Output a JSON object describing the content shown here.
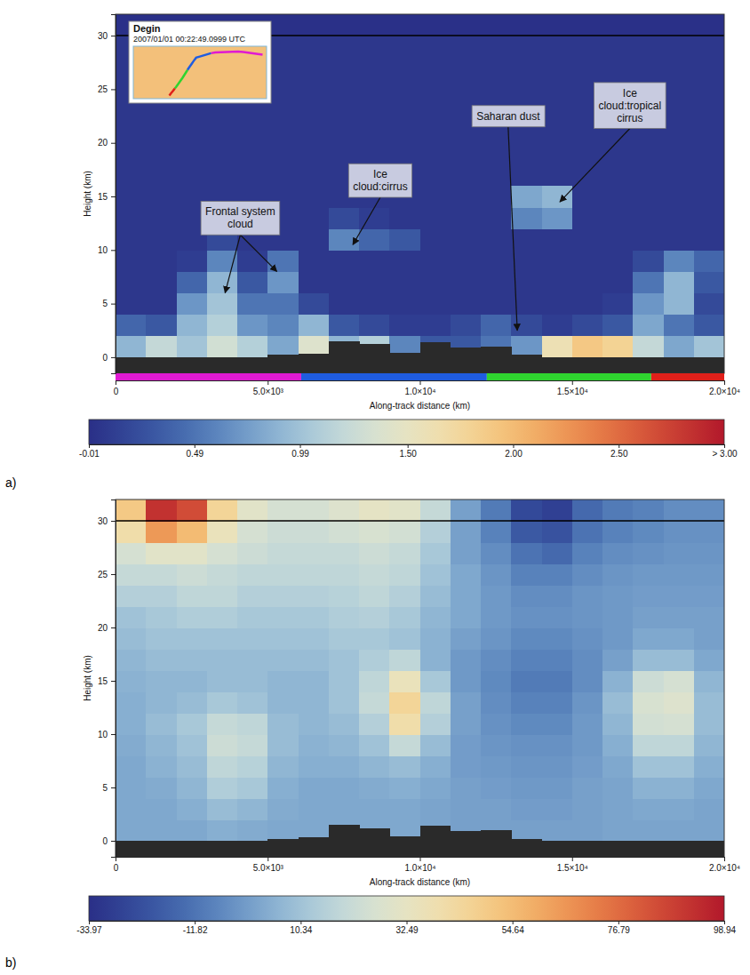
{
  "chart_data": [
    {
      "type": "heatmap",
      "panel_label": "a)",
      "x_label": "Along-track distance (km)",
      "y_label": "Height (km)",
      "xlim": [
        0,
        20000
      ],
      "ylim": [
        -1.5,
        32
      ],
      "xticks": [
        0,
        {
          "value": 5000,
          "label": "5.0×10³"
        },
        {
          "value": 10000,
          "label": "1.0×10⁴"
        },
        {
          "value": 15000,
          "label": "1.5×10⁴"
        },
        {
          "value": 20000,
          "label": "2.0×10⁴"
        }
      ],
      "yticks": [
        0,
        5,
        10,
        15,
        20,
        25,
        30
      ],
      "x_edges": [
        0,
        1000,
        2000,
        3000,
        4000,
        5000,
        6000,
        7000,
        8000,
        9000,
        10000,
        11000,
        12000,
        13000,
        14000,
        15000,
        16000,
        17000,
        18000,
        19000,
        20000
      ],
      "y_edges": [
        0,
        2,
        4,
        6,
        8,
        10,
        12,
        14,
        16,
        18,
        20,
        22,
        24,
        26,
        28,
        30,
        32
      ],
      "cells": [
        [
          0.9,
          1.2,
          1.0,
          1.3,
          1.1,
          0.8,
          1.4,
          0.9,
          1.1,
          0.6,
          0.3,
          0.3,
          0.5,
          0.7,
          1.6,
          1.9,
          1.8,
          1.2,
          0.8,
          1.0
        ],
        [
          0.4,
          0.3,
          0.9,
          1.1,
          0.7,
          0.6,
          0.9,
          0.3,
          0.2,
          0.1,
          0.1,
          0.2,
          0.4,
          0.2,
          0.1,
          0.2,
          0.3,
          0.8,
          0.5,
          0.3
        ],
        [
          0.05,
          0.05,
          0.7,
          1.0,
          0.5,
          0.5,
          0.2,
          0.05,
          0.05,
          0.05,
          0.05,
          0.05,
          0.05,
          0.05,
          0.05,
          0.05,
          0.1,
          0.7,
          0.9,
          0.2
        ],
        [
          0.05,
          0.05,
          0.4,
          0.9,
          0.3,
          0.7,
          0.05,
          0.05,
          0.05,
          0.05,
          0.05,
          0.05,
          0.05,
          0.05,
          0.05,
          0.05,
          0.05,
          0.5,
          0.9,
          0.3
        ],
        [
          0.05,
          0.05,
          0.1,
          0.6,
          0.1,
          0.5,
          0.05,
          0.05,
          0.05,
          0.05,
          0.05,
          0.05,
          0.05,
          0.05,
          0.05,
          0.05,
          0.05,
          0.2,
          0.6,
          0.4
        ],
        [
          0.05,
          0.05,
          0.05,
          0.2,
          0.05,
          0.05,
          0.05,
          0.6,
          0.4,
          0.3,
          0.05,
          0.05,
          0.05,
          0.05,
          0.05,
          0.05,
          0.05,
          0.05,
          0.05,
          0.05
        ],
        [
          0.05,
          0.05,
          0.05,
          0.05,
          0.05,
          0.05,
          0.05,
          0.2,
          0.1,
          0.05,
          0.05,
          0.05,
          0.05,
          0.6,
          0.7,
          0.05,
          0.05,
          0.05,
          0.05,
          0.05
        ],
        [
          0.05,
          0.05,
          0.05,
          0.05,
          0.05,
          0.05,
          0.05,
          0.05,
          0.05,
          0.05,
          0.05,
          0.05,
          0.05,
          0.8,
          0.9,
          0.05,
          0.05,
          0.05,
          0.05,
          0.05
        ],
        [
          0.05,
          0.05,
          0.05,
          0.05,
          0.05,
          0.05,
          0.05,
          0.05,
          0.05,
          0.05,
          0.05,
          0.05,
          0.05,
          0.05,
          0.05,
          0.05,
          0.05,
          0.05,
          0.05,
          0.05
        ],
        [
          0.05,
          0.05,
          0.05,
          0.05,
          0.05,
          0.05,
          0.05,
          0.05,
          0.05,
          0.05,
          0.05,
          0.05,
          0.05,
          0.05,
          0.05,
          0.05,
          0.05,
          0.05,
          0.05,
          0.05
        ],
        [
          0.05,
          0.05,
          0.05,
          0.05,
          0.05,
          0.05,
          0.05,
          0.05,
          0.05,
          0.05,
          0.05,
          0.05,
          0.05,
          0.05,
          0.05,
          0.05,
          0.05,
          0.05,
          0.05,
          0.05
        ],
        [
          0.05,
          0.05,
          0.05,
          0.05,
          0.05,
          0.05,
          0.05,
          0.05,
          0.05,
          0.05,
          0.05,
          0.05,
          0.05,
          0.05,
          0.05,
          0.05,
          0.05,
          0.05,
          0.05,
          0.05
        ],
        [
          0.05,
          0.05,
          0.05,
          0.05,
          0.05,
          0.05,
          0.05,
          0.05,
          0.05,
          0.05,
          0.05,
          0.05,
          0.05,
          0.05,
          0.05,
          0.05,
          0.05,
          0.05,
          0.05,
          0.05
        ],
        [
          0.05,
          0.05,
          0.05,
          0.05,
          0.05,
          0.05,
          0.05,
          0.05,
          0.05,
          0.05,
          0.05,
          0.05,
          0.05,
          0.05,
          0.05,
          0.05,
          0.05,
          0.05,
          0.05,
          0.05
        ],
        [
          0.05,
          0.05,
          0.05,
          0.05,
          0.05,
          0.05,
          0.05,
          0.05,
          0.05,
          0.05,
          0.05,
          0.05,
          0.05,
          0.05,
          0.05,
          0.05,
          0.05,
          0.05,
          0.05,
          0.05
        ],
        [
          0.0,
          0.0,
          0.0,
          0.0,
          0.0,
          0.0,
          0.0,
          0.0,
          0.0,
          0.0,
          0.0,
          0.0,
          0.0,
          0.0,
          0.0,
          0.0,
          0.0,
          0.0,
          0.0,
          0.0
        ]
      ],
      "surface": [
        0,
        0,
        0,
        0,
        0,
        0.2,
        0.3,
        1.5,
        1.2,
        0.4,
        1.4,
        0.9,
        1.0,
        0.2,
        0,
        0,
        0,
        0,
        0,
        0
      ],
      "hline": 30,
      "colorbar_range": [
        -0.01,
        3.0
      ],
      "colorbar_ticks": [
        -0.01,
        0.49,
        0.99,
        {
          "value": 1.5,
          "label": "1.50"
        },
        {
          "value": 2.0,
          "label": "2.00"
        },
        {
          "value": 2.5,
          "label": "2.50"
        },
        {
          "value": 3.0,
          "label": "> 3.00"
        }
      ],
      "track_segments": [
        {
          "start": 0,
          "end": 6100,
          "color": "#e01ad2"
        },
        {
          "start": 6100,
          "end": 12200,
          "color": "#1f5ce0"
        },
        {
          "start": 12200,
          "end": 17600,
          "color": "#2fd42f"
        },
        {
          "start": 17600,
          "end": 20000,
          "color": "#e0201a"
        }
      ],
      "inset": {
        "title": "Degin",
        "time": "2007/01/01 00:22:49.0999 UTC"
      },
      "annotations": [
        {
          "text": "Frontal system cloud",
          "points": [
            [
              3600,
              6
            ],
            [
              5300,
              8
            ]
          ]
        },
        {
          "text": "Ice cloud:cirrus",
          "points": [
            [
              7800,
              10.5
            ]
          ]
        },
        {
          "text": "Saharan dust",
          "points": [
            [
              13200,
              2.5
            ]
          ]
        },
        {
          "text": "Ice cloud:tropical cirrus",
          "points": [
            [
              14600,
              14.5
            ]
          ]
        }
      ]
    },
    {
      "type": "heatmap",
      "panel_label": "b)",
      "x_label": "Along-track distance (km)",
      "y_label": "Height (km)",
      "xlim": [
        0,
        20000
      ],
      "ylim": [
        -1.5,
        32
      ],
      "xticks": [
        0,
        {
          "value": 5000,
          "label": "5.0×10³"
        },
        {
          "value": 10000,
          "label": "1.0×10⁴"
        },
        {
          "value": 15000,
          "label": "1.5×10⁴"
        },
        {
          "value": 20000,
          "label": "2.0×10⁴"
        }
      ],
      "yticks": [
        0,
        5,
        10,
        15,
        20,
        25,
        30
      ],
      "x_edges": [
        0,
        1000,
        2000,
        3000,
        4000,
        5000,
        6000,
        7000,
        8000,
        9000,
        10000,
        11000,
        12000,
        13000,
        14000,
        15000,
        16000,
        17000,
        18000,
        19000,
        20000
      ],
      "y_edges": [
        0,
        2,
        4,
        6,
        8,
        10,
        12,
        14,
        16,
        18,
        20,
        22,
        24,
        26,
        28,
        30,
        32
      ],
      "cells": [
        [
          2,
          2,
          2,
          4,
          3,
          2,
          2,
          2,
          2,
          2,
          1,
          0,
          0,
          0,
          0,
          0,
          1,
          1,
          1,
          1
        ],
        [
          2,
          2,
          4,
          8,
          6,
          3,
          2,
          2,
          2,
          2,
          1,
          0,
          0,
          -1,
          -1,
          0,
          1,
          2,
          2,
          1
        ],
        [
          2,
          3,
          6,
          14,
          12,
          4,
          2,
          2,
          3,
          4,
          2,
          0,
          -1,
          -2,
          -2,
          0,
          1,
          5,
          5,
          2
        ],
        [
          2,
          5,
          8,
          18,
          16,
          6,
          4,
          4,
          6,
          8,
          4,
          -1,
          -2,
          -3,
          -3,
          -1,
          2,
          10,
          10,
          4
        ],
        [
          3,
          6,
          10,
          22,
          20,
          8,
          5,
          6,
          10,
          20,
          8,
          -1,
          -3,
          -4,
          -4,
          -2,
          4,
          18,
          18,
          6
        ],
        [
          4,
          8,
          12,
          20,
          18,
          8,
          6,
          8,
          15,
          40,
          15,
          0,
          -4,
          -6,
          -6,
          -2,
          6,
          24,
          25,
          8
        ],
        [
          4,
          6,
          8,
          12,
          10,
          6,
          6,
          10,
          20,
          45,
          18,
          0,
          -5,
          -8,
          -8,
          -3,
          8,
          26,
          28,
          8
        ],
        [
          5,
          6,
          6,
          8,
          8,
          6,
          6,
          10,
          18,
          35,
          12,
          -2,
          -6,
          -10,
          -10,
          -5,
          5,
          22,
          25,
          6
        ],
        [
          6,
          8,
          8,
          8,
          8,
          8,
          8,
          10,
          14,
          18,
          5,
          -2,
          -5,
          -8,
          -8,
          -5,
          0,
          8,
          8,
          2
        ],
        [
          8,
          10,
          10,
          10,
          10,
          10,
          10,
          12,
          12,
          10,
          5,
          0,
          -3,
          -6,
          -6,
          -4,
          -2,
          2,
          2,
          0
        ],
        [
          10,
          12,
          14,
          14,
          12,
          12,
          12,
          14,
          15,
          12,
          6,
          2,
          -2,
          -4,
          -4,
          -3,
          -2,
          0,
          0,
          0
        ],
        [
          15,
          15,
          18,
          18,
          15,
          15,
          15,
          16,
          18,
          15,
          8,
          2,
          -2,
          -5,
          -5,
          -3,
          -2,
          -1,
          -1,
          -1
        ],
        [
          20,
          20,
          22,
          20,
          18,
          18,
          18,
          18,
          20,
          18,
          10,
          2,
          -3,
          -8,
          -8,
          -5,
          -3,
          -2,
          -2,
          -2
        ],
        [
          25,
          30,
          30,
          25,
          22,
          20,
          20,
          20,
          22,
          20,
          12,
          0,
          -5,
          -12,
          -15,
          -8,
          -5,
          -4,
          -3,
          -3
        ],
        [
          40,
          65,
          55,
          35,
          25,
          22,
          22,
          24,
          26,
          24,
          15,
          0,
          -8,
          -20,
          -22,
          -12,
          -8,
          -6,
          -4,
          -4
        ],
        [
          50,
          92,
          85,
          45,
          30,
          25,
          25,
          28,
          32,
          30,
          20,
          0,
          -10,
          -25,
          -28,
          -15,
          -10,
          -8,
          -5,
          -5
        ]
      ],
      "surface": [
        0,
        0,
        0,
        0,
        0,
        0.2,
        0.3,
        1.5,
        1.2,
        0.4,
        1.4,
        0.9,
        1.0,
        0.2,
        0,
        0,
        0,
        0,
        0,
        0
      ],
      "hline": 30,
      "colorbar_range": [
        -33.97,
        98.94
      ],
      "colorbar_ticks": [
        -33.97,
        -11.82,
        10.34,
        32.49,
        54.64,
        76.79,
        98.94
      ]
    }
  ]
}
